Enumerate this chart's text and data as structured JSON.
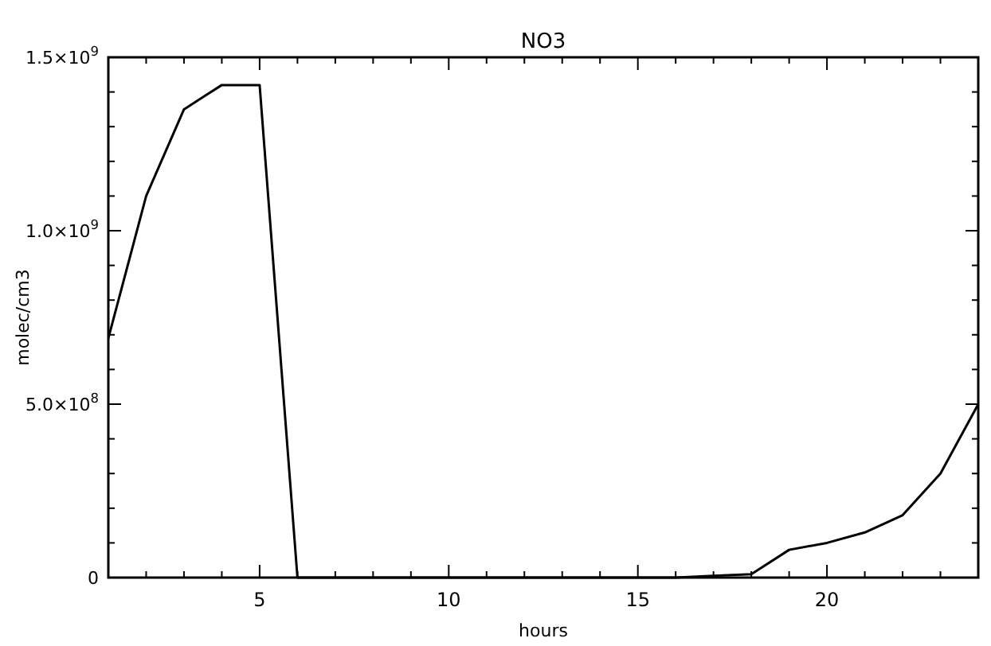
{
  "chart_data": {
    "type": "line",
    "title": "NO3",
    "xlabel": "hours",
    "ylabel": "molec/cm3",
    "x": [
      1,
      2,
      3,
      4,
      5,
      6,
      7,
      8,
      9,
      10,
      11,
      12,
      13,
      14,
      15,
      16,
      17,
      18,
      19,
      20,
      21,
      22,
      23,
      24
    ],
    "series": [
      {
        "color": "#000000",
        "values": [
          690000000.0,
          1100000000.0,
          1350000000.0,
          1420000000.0,
          1420000000.0,
          0,
          0,
          0,
          0,
          0,
          0,
          0,
          0,
          0,
          0,
          0,
          5000000.0,
          10000000.0,
          80000000.0,
          100000000.0,
          130000000.0,
          180000000.0,
          300000000.0,
          500000000.0
        ]
      }
    ],
    "xlim": [
      1,
      24
    ],
    "xticks": [
      {
        "value": 2,
        "label": null
      },
      {
        "value": 3,
        "label": null
      },
      {
        "value": 4,
        "label": null
      },
      5,
      {
        "value": 6,
        "label": null
      },
      {
        "value": 7,
        "label": null
      },
      {
        "value": 8,
        "label": null
      },
      {
        "value": 9,
        "label": null
      },
      10,
      {
        "value": 11,
        "label": null
      },
      {
        "value": 12,
        "label": null
      },
      {
        "value": 13,
        "label": null
      },
      {
        "value": 14,
        "label": null
      },
      15,
      {
        "value": 16,
        "label": null
      },
      {
        "value": 17,
        "label": null
      },
      {
        "value": 18,
        "label": null
      },
      {
        "value": 19,
        "label": null
      },
      20,
      {
        "value": 21,
        "label": null
      },
      {
        "value": 22,
        "label": null
      },
      {
        "value": 23,
        "label": null
      }
    ],
    "ylim": [
      0,
      1500000000.0
    ],
    "yticks": [
      0,
      {
        "value": 100000000.0,
        "label": null
      },
      {
        "value": 200000000.0,
        "label": null
      },
      {
        "value": 300000000.0,
        "label": null
      },
      {
        "value": 400000000.0,
        "label": null
      },
      {
        "value": 500000000.0,
        "label": "5.0×10$^{8}$"
      },
      {
        "value": 600000000.0,
        "label": null
      },
      {
        "value": 700000000.0,
        "label": null
      },
      {
        "value": 800000000.0,
        "label": null
      },
      {
        "value": 900000000.0,
        "label": null
      },
      {
        "value": 1000000000.0,
        "label": "1.0×10$^{9}$"
      },
      {
        "value": 1100000000.0,
        "label": null
      },
      {
        "value": 1200000000.0,
        "label": null
      },
      {
        "value": 1300000000.0,
        "label": null
      },
      {
        "value": 1400000000.0,
        "label": null
      },
      {
        "value": 1500000000.0,
        "label": "1.5×10$^{9}$"
      }
    ],
    "line_style": "solid"
  }
}
